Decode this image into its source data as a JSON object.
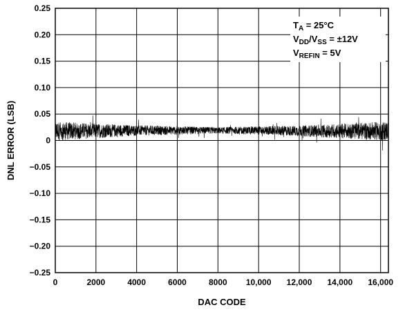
{
  "chart_data": {
    "type": "line",
    "title": "",
    "xlabel": "DAC CODE",
    "ylabel": "DNL ERROR (LSB)",
    "xlim": [
      0,
      16384
    ],
    "ylim": [
      -0.25,
      0.25
    ],
    "x_ticks": [
      0,
      2000,
      4000,
      6000,
      8000,
      10000,
      12000,
      14000,
      16000
    ],
    "x_tick_labels": [
      "0",
      "2000",
      "4000",
      "6000",
      "8000",
      "10,000",
      "12,000",
      "14,000",
      "16,000"
    ],
    "y_ticks": [
      0.25,
      0.2,
      0.15,
      0.1,
      0.05,
      0,
      -0.05,
      -0.1,
      -0.15,
      -0.2,
      -0.25
    ],
    "y_tick_labels": [
      "0.25",
      "0.20",
      "0.15",
      "0.10",
      "0.05",
      "0",
      "−0.05",
      "−0.10",
      "−0.15",
      "−0.20",
      "−0.25"
    ],
    "grid": true,
    "annotation_lines": [
      {
        "base": "T",
        "sub": "A",
        "rest": " = 25°C"
      },
      {
        "base": "V",
        "sub": "DD",
        "mid": "/V",
        "sub2": "SS",
        "rest": " = ±12V"
      },
      {
        "base": "V",
        "sub": "REFIN",
        "rest": " = 5V"
      }
    ],
    "legend_position": "top-right",
    "series": [
      {
        "description_values": "DNL noise band centered near 0.02 LSB",
        "center_profile": [
          {
            "x": 0,
            "y": 0.018
          },
          {
            "x": 2000,
            "y": 0.018
          },
          {
            "x": 4000,
            "y": 0.019
          },
          {
            "x": 6000,
            "y": 0.019
          },
          {
            "x": 8000,
            "y": 0.019
          },
          {
            "x": 10000,
            "y": 0.019
          },
          {
            "x": 12000,
            "y": 0.018
          },
          {
            "x": 14000,
            "y": 0.018
          },
          {
            "x": 16383,
            "y": 0.018
          }
        ],
        "band_half_width": [
          {
            "x": 0,
            "y": 0.018
          },
          {
            "x": 2000,
            "y": 0.014
          },
          {
            "x": 4000,
            "y": 0.01
          },
          {
            "x": 6000,
            "y": 0.008
          },
          {
            "x": 8000,
            "y": 0.006
          },
          {
            "x": 10000,
            "y": 0.008
          },
          {
            "x": 12000,
            "y": 0.01
          },
          {
            "x": 14000,
            "y": 0.014
          },
          {
            "x": 16383,
            "y": 0.018
          }
        ],
        "color": "#000000"
      }
    ]
  }
}
